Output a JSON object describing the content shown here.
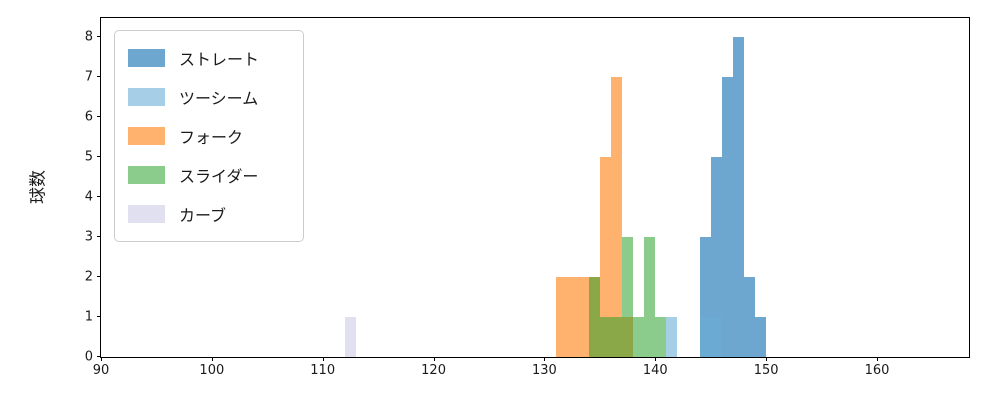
{
  "figure": {
    "background": "#ffffff",
    "spine_color": "#000000"
  },
  "chart_data": {
    "type": "bar",
    "subtype": "histogram",
    "title": "",
    "xlabel": "",
    "ylabel": "球数",
    "xlim": [
      90,
      168.3
    ],
    "ylim": [
      0,
      8.47
    ],
    "xticks": [
      "90",
      "100",
      "110",
      "120",
      "130",
      "140",
      "150",
      "160"
    ],
    "yticks": [
      "0",
      "1",
      "2",
      "3",
      "4",
      "5",
      "6",
      "7",
      "8"
    ],
    "grid": false,
    "legend_position": "upper left",
    "bin_width": 1,
    "series": [
      {
        "name": "ストレート",
        "color": "#1f77b4",
        "opacity": 0.65,
        "bins": [
          [
            144,
            3
          ],
          [
            145,
            5
          ],
          [
            146,
            7
          ],
          [
            147,
            8
          ],
          [
            148,
            2
          ],
          [
            149,
            1
          ]
        ]
      },
      {
        "name": "ツーシーム",
        "color": "#6baed6",
        "opacity": 0.6,
        "bins": [
          [
            141,
            1
          ],
          [
            144,
            1
          ],
          [
            145,
            1
          ]
        ]
      },
      {
        "name": "フォーク",
        "color": "#ff7f0e",
        "opacity": 0.6,
        "bins": [
          [
            131,
            2
          ],
          [
            132,
            2
          ],
          [
            133,
            2
          ],
          [
            134,
            2
          ],
          [
            135,
            5
          ],
          [
            136,
            7
          ],
          [
            137,
            1
          ]
        ]
      },
      {
        "name": "スライダー",
        "color": "#2ca02c",
        "opacity": 0.55,
        "bins": [
          [
            134,
            2
          ],
          [
            135,
            1
          ],
          [
            136,
            1
          ],
          [
            137,
            3
          ],
          [
            138,
            1
          ],
          [
            139,
            3
          ],
          [
            140,
            1
          ]
        ]
      },
      {
        "name": "カーブ",
        "color": "#9a97cf",
        "opacity": 0.3,
        "bins": [
          [
            112,
            1
          ]
        ]
      }
    ]
  }
}
